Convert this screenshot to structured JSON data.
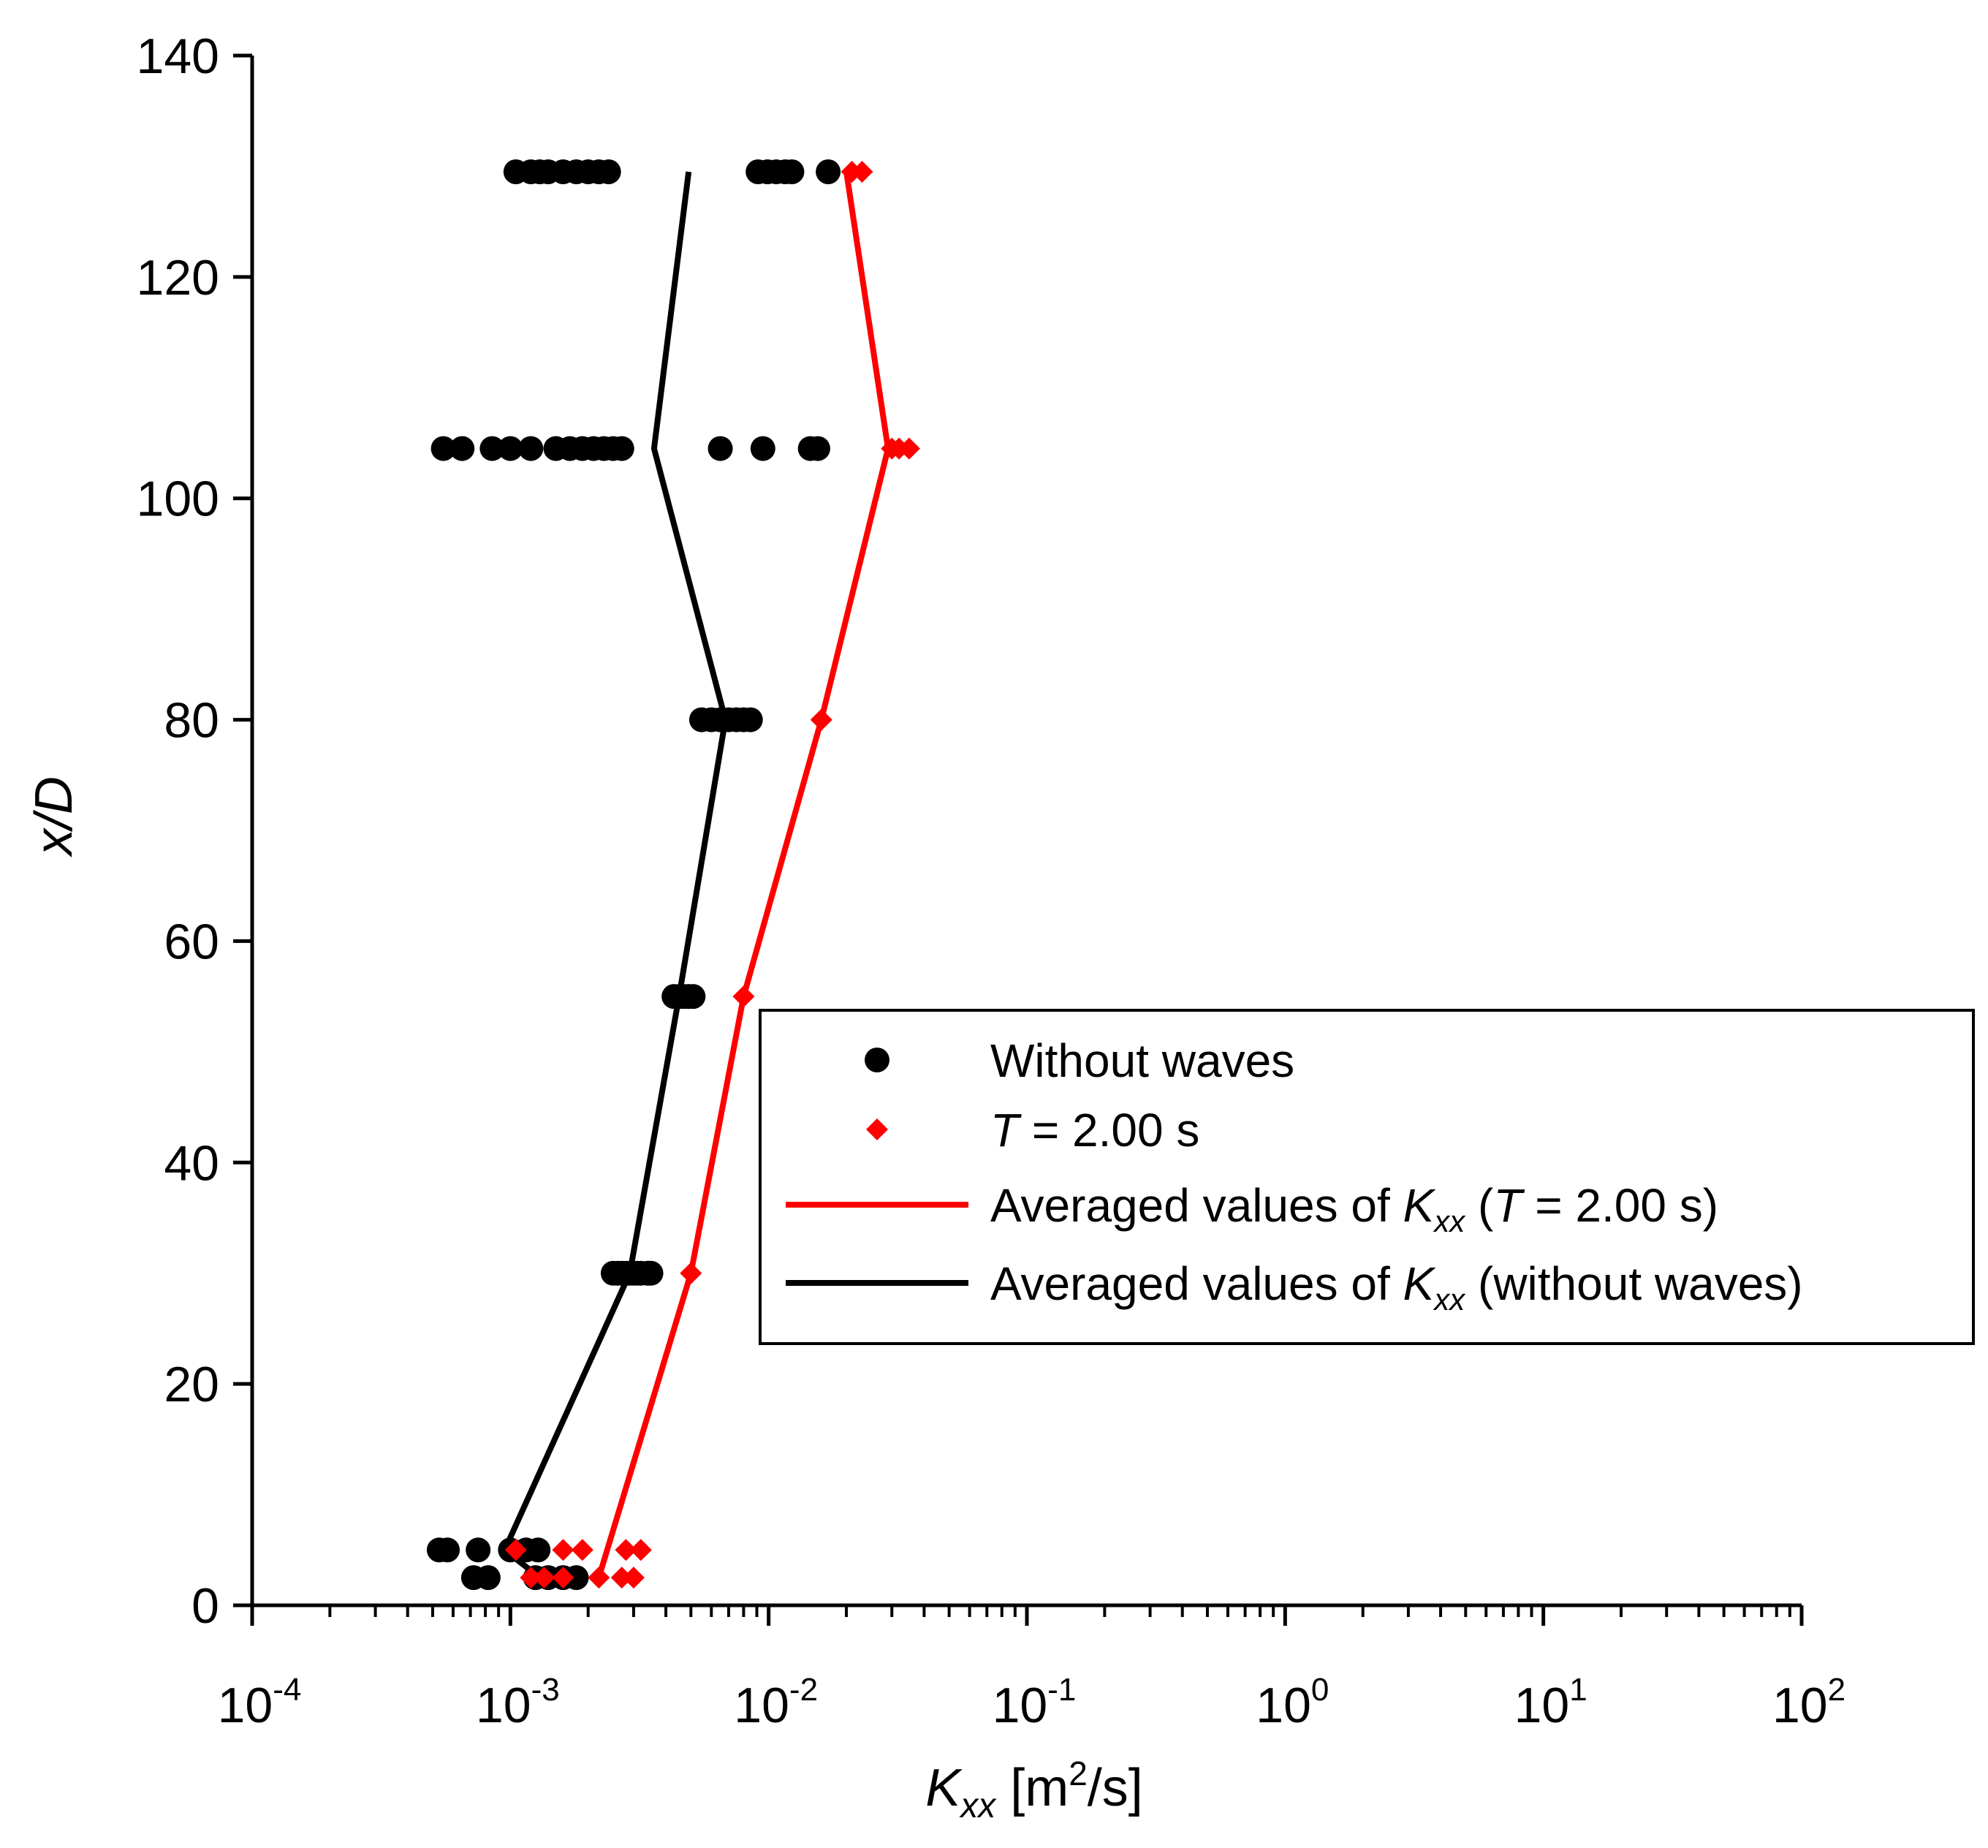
{
  "chart_data": {
    "type": "scatter",
    "xscale": "log",
    "xlim": [
      0.0001,
      100
    ],
    "ylim": [
      0,
      140
    ],
    "xlabel": {
      "main": "K",
      "sub": "xx",
      "unit_pre": " [m",
      "unit_sup": "2",
      "unit_post": "/s]"
    },
    "ylabel": "x/D",
    "xticks": [
      {
        "value": 0.0001,
        "base": "10",
        "exp": "-4"
      },
      {
        "value": 0.001,
        "base": "10",
        "exp": "-3"
      },
      {
        "value": 0.01,
        "base": "10",
        "exp": "-2"
      },
      {
        "value": 0.1,
        "base": "10",
        "exp": "-1"
      },
      {
        "value": 1,
        "base": "10",
        "exp": "0"
      },
      {
        "value": 10,
        "base": "10",
        "exp": "1"
      },
      {
        "value": 100,
        "base": "10",
        "exp": "2"
      }
    ],
    "yticks": [
      0,
      20,
      40,
      60,
      80,
      100,
      120,
      140
    ],
    "grid": false,
    "legend_position": "center-right",
    "series": [
      {
        "name": "Without waves",
        "kind": "points",
        "marker": "circle",
        "color": "#000000",
        "points": [
          [
            0.00053,
            5
          ],
          [
            0.00057,
            5
          ],
          [
            0.00075,
            5
          ],
          [
            0.001,
            5
          ],
          [
            0.00115,
            5
          ],
          [
            0.00128,
            5
          ],
          [
            0.00072,
            2.5
          ],
          [
            0.00082,
            2.5
          ],
          [
            0.00125,
            2.5
          ],
          [
            0.0014,
            2.5
          ],
          [
            0.0016,
            2.5
          ],
          [
            0.0018,
            2.5
          ],
          [
            0.0025,
            30
          ],
          [
            0.0026,
            30
          ],
          [
            0.0027,
            30
          ],
          [
            0.0028,
            30
          ],
          [
            0.0029,
            30
          ],
          [
            0.003,
            30
          ],
          [
            0.0031,
            30
          ],
          [
            0.0032,
            30
          ],
          [
            0.0034,
            30
          ],
          [
            0.0035,
            30
          ],
          [
            0.0043,
            55
          ],
          [
            0.0045,
            55
          ],
          [
            0.0047,
            55
          ],
          [
            0.0049,
            55
          ],
          [
            0.0051,
            55
          ],
          [
            0.0055,
            80
          ],
          [
            0.006,
            80
          ],
          [
            0.0065,
            80
          ],
          [
            0.007,
            80
          ],
          [
            0.0075,
            80
          ],
          [
            0.008,
            80
          ],
          [
            0.0085,
            80
          ],
          [
            0.00055,
            104.5
          ],
          [
            0.00065,
            104.5
          ],
          [
            0.00085,
            104.5
          ],
          [
            0.001,
            104.5
          ],
          [
            0.0012,
            104.5
          ],
          [
            0.0015,
            104.5
          ],
          [
            0.0017,
            104.5
          ],
          [
            0.0019,
            104.5
          ],
          [
            0.0021,
            104.5
          ],
          [
            0.0023,
            104.5
          ],
          [
            0.0025,
            104.5
          ],
          [
            0.0027,
            104.5
          ],
          [
            0.0065,
            104.5
          ],
          [
            0.0095,
            104.5
          ],
          [
            0.0145,
            104.5
          ],
          [
            0.0155,
            104.5
          ],
          [
            0.00105,
            129.5
          ],
          [
            0.0012,
            129.5
          ],
          [
            0.0013,
            129.5
          ],
          [
            0.0014,
            129.5
          ],
          [
            0.0016,
            129.5
          ],
          [
            0.0018,
            129.5
          ],
          [
            0.002,
            129.5
          ],
          [
            0.0022,
            129.5
          ],
          [
            0.0024,
            129.5
          ],
          [
            0.0091,
            129.5
          ],
          [
            0.0099,
            129.5
          ],
          [
            0.0107,
            129.5
          ],
          [
            0.0116,
            129.5
          ],
          [
            0.0123,
            129.5
          ],
          [
            0.017,
            129.5
          ]
        ]
      },
      {
        "name": "T = 2.00 s",
        "kind": "points",
        "marker": "diamond",
        "color": "#ff0000",
        "points": [
          [
            0.00105,
            5
          ],
          [
            0.0016,
            5
          ],
          [
            0.0019,
            5
          ],
          [
            0.0028,
            5
          ],
          [
            0.0032,
            5
          ],
          [
            0.0012,
            2.5
          ],
          [
            0.00135,
            2.5
          ],
          [
            0.0016,
            2.5
          ],
          [
            0.0022,
            2.5
          ],
          [
            0.0027,
            2.5
          ],
          [
            0.003,
            2.5
          ],
          [
            0.005,
            30
          ],
          [
            0.008,
            55
          ],
          [
            0.016,
            80
          ],
          [
            0.03,
            104.5
          ],
          [
            0.032,
            104.5
          ],
          [
            0.035,
            104.5
          ],
          [
            0.021,
            129.5
          ],
          [
            0.023,
            129.5
          ]
        ]
      },
      {
        "name": "Averaged values of K_xx (T = 2.00 s)",
        "kind": "line",
        "color": "#ff0000",
        "points": [
          [
            0.0022,
            2.5
          ],
          [
            0.005,
            30
          ],
          [
            0.008,
            55
          ],
          [
            0.016,
            80
          ],
          [
            0.029,
            104.5
          ],
          [
            0.02,
            129.5
          ]
        ]
      },
      {
        "name": "Averaged values of K_xx (without waves)",
        "kind": "line",
        "color": "#000000",
        "points": [
          [
            0.0013,
            2.5
          ],
          [
            0.00095,
            5
          ],
          [
            0.0029,
            30
          ],
          [
            0.0045,
            55
          ],
          [
            0.0068,
            80
          ],
          [
            0.0036,
            104.5
          ],
          [
            0.0049,
            129.5
          ]
        ]
      }
    ],
    "legend": [
      {
        "marker": "circle",
        "color": "#000000",
        "parts": [
          {
            "t": "Without waves"
          }
        ]
      },
      {
        "marker": "diamond",
        "color": "#ff0000",
        "parts": [
          {
            "t": "T",
            "i": true
          },
          {
            "t": " = 2.00 s"
          }
        ]
      },
      {
        "marker": "line",
        "color": "#ff0000",
        "parts": [
          {
            "t": "Averaged values of "
          },
          {
            "t": "K",
            "i": true
          },
          {
            "t": "xx",
            "i": true,
            "sub": true
          },
          {
            "t": " ("
          },
          {
            "t": "T",
            "i": true
          },
          {
            "t": " = 2.00 s)"
          }
        ]
      },
      {
        "marker": "line",
        "color": "#000000",
        "parts": [
          {
            "t": "Averaged values of "
          },
          {
            "t": "K",
            "i": true
          },
          {
            "t": "xx",
            "i": true,
            "sub": true
          },
          {
            "t": " (without waves)"
          }
        ]
      }
    ]
  }
}
